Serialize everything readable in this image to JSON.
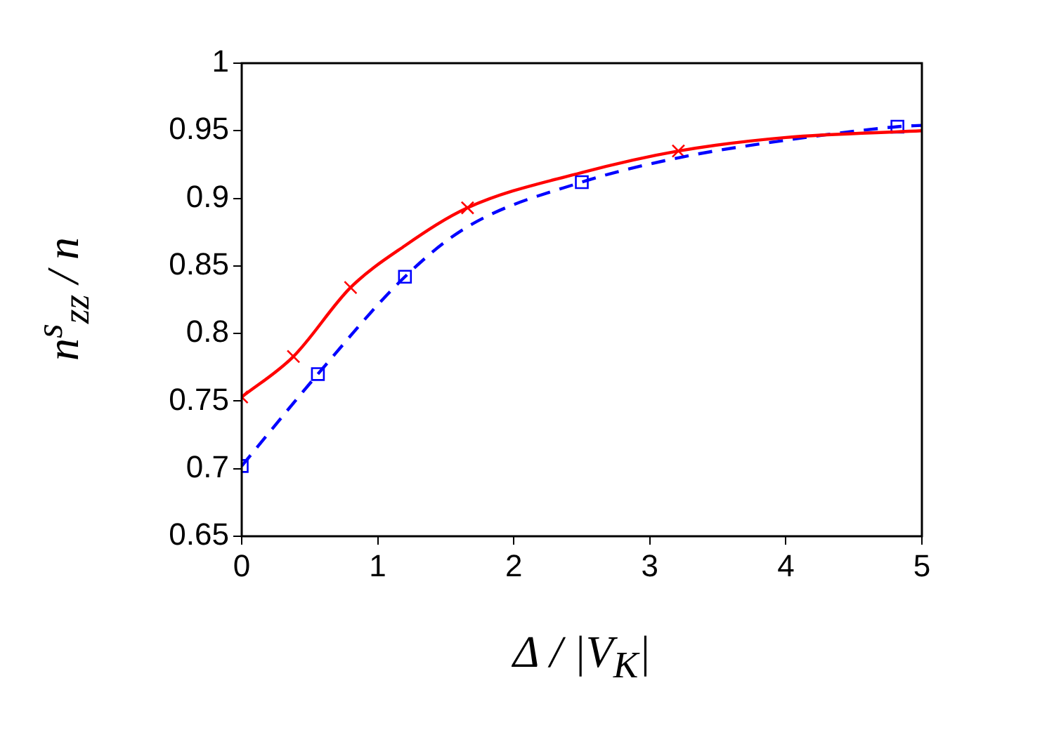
{
  "chart_data": {
    "type": "line",
    "xlabel": "Δ / |V$_{K}$|",
    "ylabel": "n$^{s}$$_{zz}$ / n",
    "xlim": [
      0,
      5
    ],
    "xticks": [
      0,
      1,
      2,
      3,
      4,
      5
    ],
    "ylim": [
      0.65,
      1
    ],
    "yticks": [
      0.65,
      0.7,
      0.75,
      0.8,
      0.85,
      0.9,
      0.95,
      1
    ],
    "grid": false,
    "legend": false,
    "series": [
      {
        "type": "line",
        "color": "#ff0000",
        "line_style": "solid",
        "marker": "none",
        "x": [
          0,
          0.38,
          0.8,
          1.2,
          1.66,
          2.5,
          3.21,
          4,
          5
        ],
        "values": [
          0.753,
          0.783,
          0.834,
          0.865,
          0.893,
          0.919,
          0.935,
          0.945,
          0.95
        ]
      },
      {
        "type": "line",
        "color": "#0000ff",
        "line_style": "dashed",
        "marker": "none",
        "x": [
          0,
          0.56,
          1.2,
          1.66,
          2.5,
          3.21,
          4,
          4.82,
          5
        ],
        "values": [
          0.702,
          0.77,
          0.842,
          0.879,
          0.912,
          0.93,
          0.943,
          0.953,
          0.954
        ]
      },
      {
        "type": "scatter",
        "color": "#ff0000",
        "marker": "cross",
        "x": [
          0,
          0.38,
          0.8,
          1.66,
          3.21
        ],
        "values": [
          0.753,
          0.783,
          0.834,
          0.893,
          0.935
        ]
      },
      {
        "type": "scatter",
        "color": "#0000ff",
        "marker": "square",
        "x": [
          0,
          0.56,
          1.2,
          2.5,
          4.82
        ],
        "values": [
          0.702,
          0.77,
          0.842,
          0.912,
          0.953
        ]
      }
    ]
  }
}
